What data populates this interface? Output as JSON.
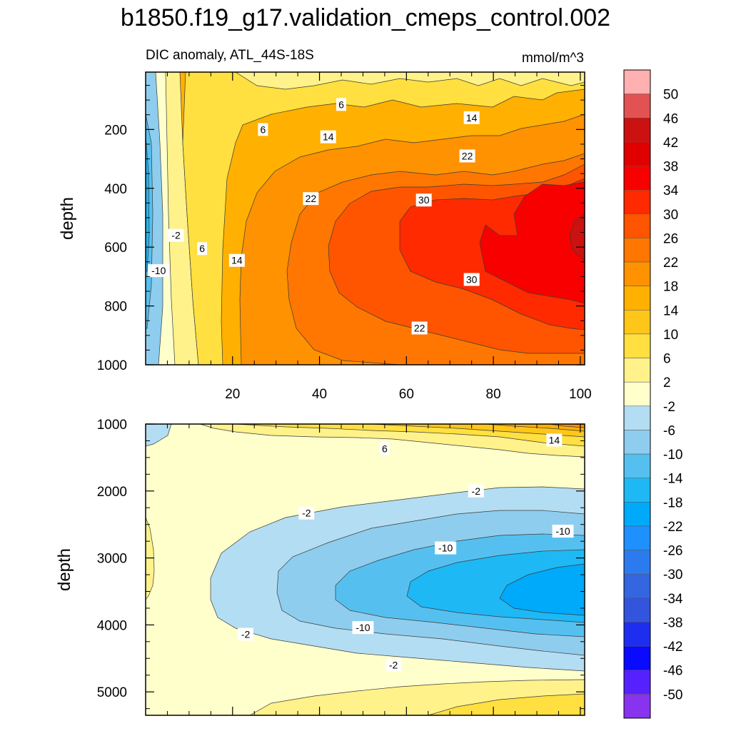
{
  "chart_data": {
    "type": "contour",
    "title": "b1850.f19_g17.validation_cmeps_control.002",
    "variable": "DIC anomaly, ATL_44S-18S",
    "units": "mmol/m^3",
    "ylabel": "depth",
    "x_range": [
      0,
      101
    ],
    "x_ticks": [
      20,
      40,
      60,
      80,
      100
    ],
    "panels": [
      {
        "name": "upper",
        "ylim": [
          1000,
          5
        ],
        "y_ticks": [
          200,
          400,
          600,
          800,
          1000
        ],
        "contour_labels": [
          {
            "text": "6",
            "x": 45,
            "y": 115
          },
          {
            "text": "6",
            "x": 27,
            "y": 200
          },
          {
            "text": "14",
            "x": 42,
            "y": 225
          },
          {
            "text": "14",
            "x": 75,
            "y": 160
          },
          {
            "text": "22",
            "x": 74,
            "y": 290
          },
          {
            "text": "22",
            "x": 38,
            "y": 435
          },
          {
            "text": "30",
            "x": 64,
            "y": 440
          },
          {
            "text": "-2",
            "x": 7,
            "y": 560
          },
          {
            "text": "6",
            "x": 13,
            "y": 605
          },
          {
            "text": "14",
            "x": 21,
            "y": 645
          },
          {
            "text": "-10",
            "x": 3,
            "y": 680
          },
          {
            "text": "30",
            "x": 75,
            "y": 710
          },
          {
            "text": "22",
            "x": 63,
            "y": 875
          }
        ]
      },
      {
        "name": "lower",
        "ylim": [
          5350,
          1000
        ],
        "y_ticks": [
          1000,
          2000,
          3000,
          4000,
          5000
        ],
        "contour_labels": [
          {
            "text": "6",
            "x": 55,
            "y": 1370
          },
          {
            "text": "14",
            "x": 94,
            "y": 1240
          },
          {
            "text": "-2",
            "x": 76,
            "y": 2000
          },
          {
            "text": "-2",
            "x": 37,
            "y": 2330
          },
          {
            "text": "-10",
            "x": 96,
            "y": 2600
          },
          {
            "text": "-10",
            "x": 69,
            "y": 2850
          },
          {
            "text": "-10",
            "x": 50,
            "y": 4040
          },
          {
            "text": "-2",
            "x": 23,
            "y": 4140
          },
          {
            "text": "-2",
            "x": 57,
            "y": 4600
          }
        ]
      }
    ],
    "colorbar": {
      "levels": [
        50,
        46,
        42,
        38,
        34,
        30,
        26,
        22,
        18,
        14,
        10,
        6,
        2,
        -2,
        -6,
        -10,
        -14,
        -18,
        -22,
        -26,
        -30,
        -34,
        -38,
        -42,
        -46,
        -50
      ],
      "colors": [
        "#FFB0B0",
        "#E35252",
        "#CC1111",
        "#E00000",
        "#F80000",
        "#FF2A00",
        "#FF5500",
        "#FF7700",
        "#FF9200",
        "#FFB000",
        "#FFC61A",
        "#FFE040",
        "#FFF28A",
        "#FFFFCC",
        "#B3DDF2",
        "#8FCDEE",
        "#55C0F0",
        "#1EB8F5",
        "#00AAFA",
        "#1E90FF",
        "#2C7BEE",
        "#3466E0",
        "#3355DD",
        "#1E2EEE",
        "#0A0AFF",
        "#5522FF",
        "#8833EE"
      ]
    }
  }
}
